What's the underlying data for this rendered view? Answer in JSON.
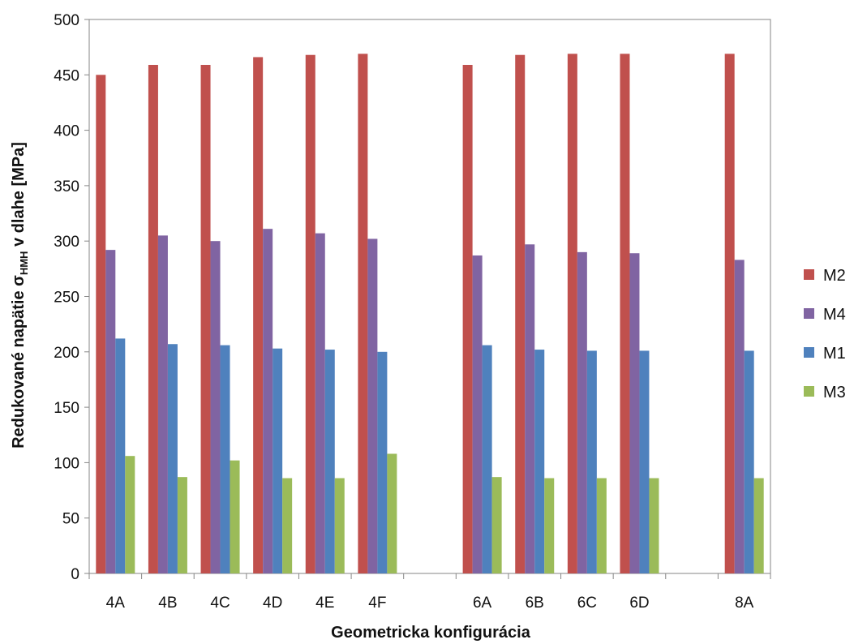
{
  "chart_data": {
    "type": "bar",
    "title": "",
    "xlabel": "Geometricka konfigurácia",
    "ylabel": {
      "prefix": "Redukované napätie σ",
      "subscript": "HMH",
      "suffix": " v dlahe [MPa]"
    },
    "ylim": [
      0,
      500
    ],
    "yticks": [
      0,
      50,
      100,
      150,
      200,
      250,
      300,
      350,
      400,
      450,
      500
    ],
    "grid": false,
    "legend_position": "right",
    "categories": [
      "4A",
      "4B",
      "4C",
      "4D",
      "4E",
      "4F",
      "",
      "6A",
      "6B",
      "6C",
      "6D",
      "",
      "8A"
    ],
    "series": [
      {
        "name": "M2",
        "color": "#c0504d",
        "values": [
          450,
          459,
          459,
          466,
          468,
          469,
          null,
          459,
          468,
          469,
          469,
          null,
          469
        ]
      },
      {
        "name": "M4",
        "color": "#8064a2",
        "values": [
          292,
          305,
          300,
          311,
          307,
          302,
          null,
          287,
          297,
          290,
          289,
          null,
          283
        ]
      },
      {
        "name": "M1",
        "color": "#4f81bd",
        "values": [
          212,
          207,
          206,
          203,
          202,
          200,
          null,
          206,
          202,
          201,
          201,
          null,
          201
        ]
      },
      {
        "name": "M3",
        "color": "#9bbb59",
        "values": [
          106,
          87,
          102,
          86,
          86,
          108,
          null,
          87,
          86,
          86,
          86,
          null,
          86
        ]
      }
    ]
  }
}
